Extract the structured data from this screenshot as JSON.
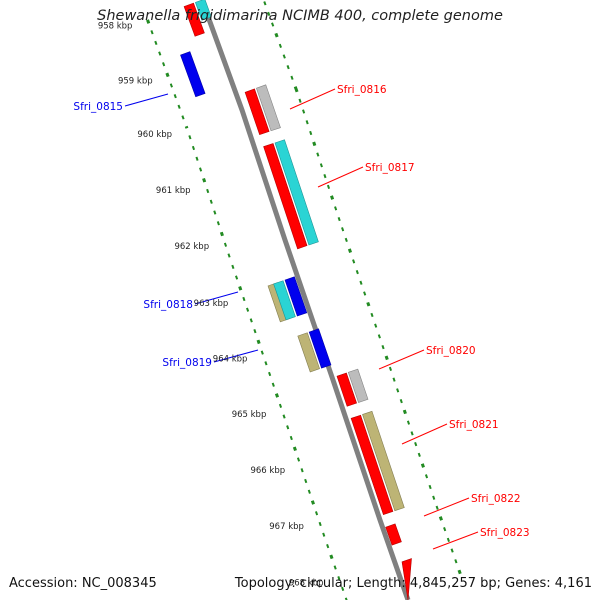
{
  "title": "Shewanella frigidimarina NCIMB 400, complete genome",
  "accession": "Accession: NC_008345",
  "topology": "Topology: circular; Length: 4,845,257 bp; Genes: 4,161",
  "colors": {
    "red": "#ff0000",
    "blue": "#0000ee",
    "cyan": "#2ad4d4",
    "gray": "#bcbcbc",
    "olive": "#bdb475",
    "ticks": "#228b22",
    "backbone": "#808080"
  },
  "kbp_labels": [
    "958 kbp",
    "959 kbp",
    "960 kbp",
    "961 kbp",
    "962 kbp",
    "963 kbp",
    "964 kbp",
    "965 kbp",
    "966 kbp",
    "967 kbp",
    "968 kbp"
  ],
  "gene_labels": {
    "left": [
      "Sfri_0815",
      "Sfri_0818",
      "Sfri_0819"
    ],
    "right": [
      "Sfri_0816",
      "Sfri_0817",
      "Sfri_0820",
      "Sfri_0821",
      "Sfri_0822",
      "Sfri_0823"
    ]
  }
}
